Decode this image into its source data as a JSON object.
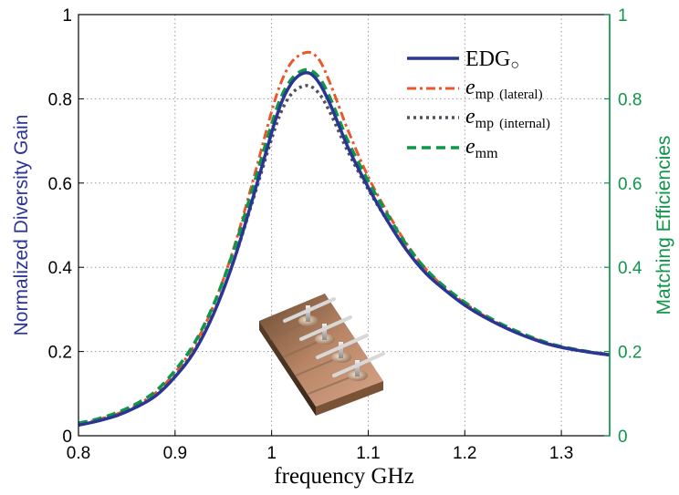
{
  "chart_data": {
    "type": "line",
    "xlabel": "frequency GHz",
    "ylabel_left": "Normalized Diversity Gain",
    "ylabel_right": "Matching Efficiencies",
    "xlim": [
      0.8,
      1.35
    ],
    "ylim": [
      0,
      1
    ],
    "y2lim": [
      0,
      1
    ],
    "xticks": [
      "0.8",
      "0.9",
      "1",
      "1.1",
      "1.2",
      "1.3"
    ],
    "yticks_left": [
      "0",
      "0.2",
      "0.4",
      "0.6",
      "0.8",
      "1"
    ],
    "yticks_right": [
      "0",
      "0.2",
      "0.4",
      "0.6",
      "0.8",
      "1"
    ],
    "grid": true,
    "legend_position": "top-right",
    "colors": {
      "edg": "#2b3593",
      "mp_lateral": "#e8582a",
      "mp_internal": "#50505a",
      "mm": "#0f9648",
      "right_axis": "#0f9648"
    },
    "legend": [
      {
        "main": "EDG",
        "sub": "○",
        "note": ""
      },
      {
        "main": "e",
        "sub": "mp",
        "note": "(lateral)"
      },
      {
        "main": "e",
        "sub": "mp",
        "note": "(internal)"
      },
      {
        "main": "e",
        "sub": "mm",
        "note": ""
      }
    ],
    "x": [
      0.8,
      0.82,
      0.84,
      0.86,
      0.88,
      0.9,
      0.92,
      0.94,
      0.96,
      0.98,
      1.0,
      1.01,
      1.02,
      1.03,
      1.04,
      1.05,
      1.06,
      1.07,
      1.08,
      1.1,
      1.12,
      1.14,
      1.16,
      1.18,
      1.2,
      1.22,
      1.25,
      1.28,
      1.3,
      1.33,
      1.35
    ],
    "series": [
      {
        "key": "edg",
        "axis": "left",
        "values": [
          0.025,
          0.035,
          0.048,
          0.068,
          0.095,
          0.14,
          0.2,
          0.29,
          0.41,
          0.56,
          0.72,
          0.79,
          0.835,
          0.858,
          0.86,
          0.835,
          0.79,
          0.735,
          0.68,
          0.59,
          0.51,
          0.44,
          0.385,
          0.345,
          0.31,
          0.282,
          0.248,
          0.222,
          0.21,
          0.198,
          0.192
        ]
      },
      {
        "key": "mp_lateral",
        "axis": "right",
        "values": [
          0.028,
          0.038,
          0.052,
          0.073,
          0.102,
          0.15,
          0.215,
          0.31,
          0.44,
          0.6,
          0.77,
          0.84,
          0.885,
          0.905,
          0.91,
          0.89,
          0.84,
          0.78,
          0.72,
          0.615,
          0.53,
          0.455,
          0.395,
          0.35,
          0.315,
          0.285,
          0.25,
          0.224,
          0.211,
          0.199,
          0.193
        ]
      },
      {
        "key": "mp_internal",
        "axis": "right",
        "values": [
          0.027,
          0.037,
          0.05,
          0.07,
          0.097,
          0.142,
          0.203,
          0.292,
          0.41,
          0.555,
          0.705,
          0.77,
          0.81,
          0.828,
          0.83,
          0.81,
          0.77,
          0.72,
          0.67,
          0.585,
          0.51,
          0.442,
          0.388,
          0.348,
          0.313,
          0.284,
          0.249,
          0.223,
          0.21,
          0.198,
          0.192
        ]
      },
      {
        "key": "mm",
        "axis": "right",
        "values": [
          0.03,
          0.04,
          0.055,
          0.076,
          0.106,
          0.155,
          0.22,
          0.312,
          0.435,
          0.585,
          0.74,
          0.805,
          0.845,
          0.865,
          0.868,
          0.848,
          0.805,
          0.75,
          0.695,
          0.605,
          0.525,
          0.452,
          0.395,
          0.352,
          0.317,
          0.287,
          0.252,
          0.225,
          0.212,
          0.199,
          0.193
        ]
      }
    ]
  }
}
